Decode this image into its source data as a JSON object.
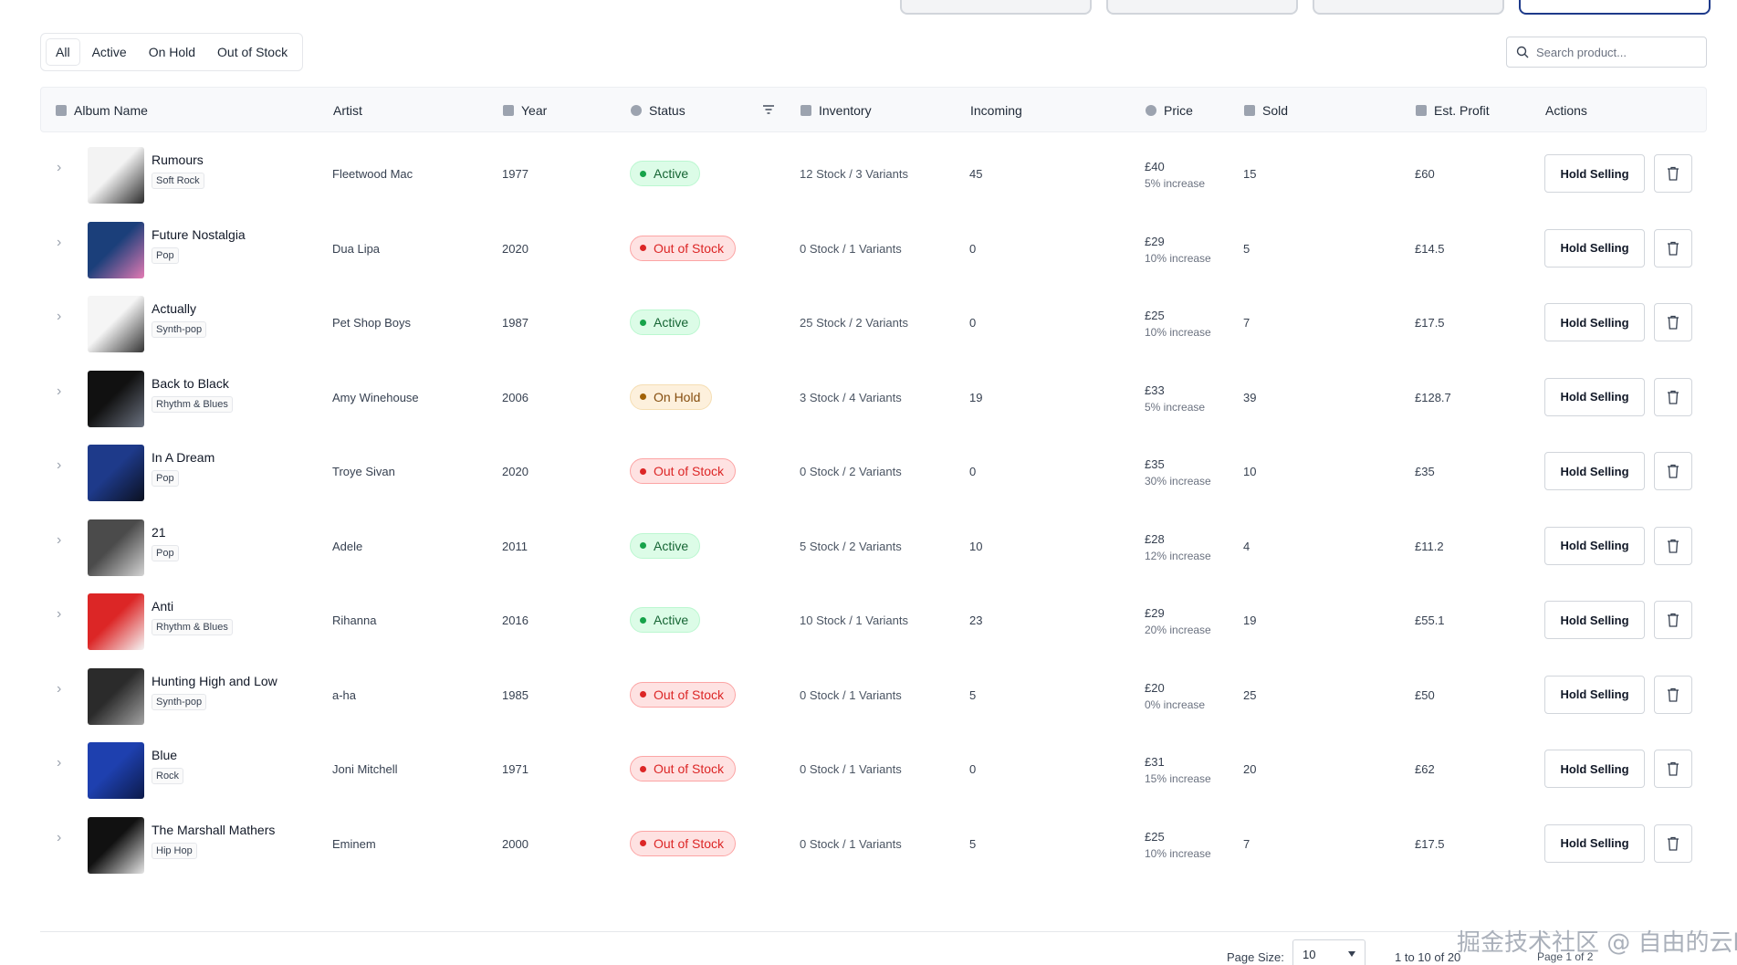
{
  "filters": {
    "tabs": [
      "All",
      "Active",
      "On Hold",
      "Out of Stock"
    ]
  },
  "search": {
    "placeholder": "Search product..."
  },
  "columns": {
    "album": "Album Name",
    "artist": "Artist",
    "year": "Year",
    "status": "Status",
    "inventory": "Inventory",
    "incoming": "Incoming",
    "price": "Price",
    "sold": "Sold",
    "profit": "Est. Profit",
    "actions": "Actions"
  },
  "rows": [
    {
      "title": "Rumours",
      "genre": "Soft Rock",
      "artist": "Fleetwood Mac",
      "year": "1977",
      "status": "Active",
      "status_kind": "active",
      "inventory": "12 Stock / 3 Variants",
      "incoming": "45",
      "price": "£40",
      "increase": "5% increase",
      "sold": "15",
      "profit": "£60",
      "cover": [
        "#f3f3f3",
        "#2b2b2b"
      ]
    },
    {
      "title": "Future Nostalgia",
      "genre": "Pop",
      "artist": "Dua Lipa",
      "year": "2020",
      "status": "Out of Stock",
      "status_kind": "oos",
      "inventory": "0 Stock / 1 Variants",
      "incoming": "0",
      "price": "£29",
      "increase": "10% increase",
      "sold": "5",
      "profit": "£14.5",
      "cover": [
        "#1b3f7a",
        "#e37ab3"
      ]
    },
    {
      "title": "Actually",
      "genre": "Synth-pop",
      "artist": "Pet Shop Boys",
      "year": "1987",
      "status": "Active",
      "status_kind": "active",
      "inventory": "25 Stock / 2 Variants",
      "incoming": "0",
      "price": "£25",
      "increase": "10% increase",
      "sold": "7",
      "profit": "£17.5",
      "cover": [
        "#f5f5f5",
        "#333333"
      ]
    },
    {
      "title": "Back to Black",
      "genre": "Rhythm & Blues",
      "artist": "Amy Winehouse",
      "year": "2006",
      "status": "On Hold",
      "status_kind": "hold",
      "inventory": "3 Stock / 4 Variants",
      "incoming": "19",
      "price": "£33",
      "increase": "5% increase",
      "sold": "39",
      "profit": "£128.7",
      "cover": [
        "#111111",
        "#6b7280"
      ]
    },
    {
      "title": "In A Dream",
      "genre": "Pop",
      "artist": "Troye Sivan",
      "year": "2020",
      "status": "Out of Stock",
      "status_kind": "oos",
      "inventory": "0 Stock / 2 Variants",
      "incoming": "0",
      "price": "£35",
      "increase": "30% increase",
      "sold": "10",
      "profit": "£35",
      "cover": [
        "#1e3a8a",
        "#0b1020"
      ]
    },
    {
      "title": "21",
      "genre": "Pop",
      "artist": "Adele",
      "year": "2011",
      "status": "Active",
      "status_kind": "active",
      "inventory": "5 Stock / 2 Variants",
      "incoming": "10",
      "price": "£28",
      "increase": "12% increase",
      "sold": "4",
      "profit": "£11.2",
      "cover": [
        "#4b4b4b",
        "#d4d4d4"
      ]
    },
    {
      "title": "Anti",
      "genre": "Rhythm & Blues",
      "artist": "Rihanna",
      "year": "2016",
      "status": "Active",
      "status_kind": "active",
      "inventory": "10 Stock / 1 Variants",
      "incoming": "23",
      "price": "£29",
      "increase": "20% increase",
      "sold": "19",
      "profit": "£55.1",
      "cover": [
        "#dc2626",
        "#f5f5f5"
      ]
    },
    {
      "title": "Hunting High and Low",
      "genre": "Synth-pop",
      "artist": "a-ha",
      "year": "1985",
      "status": "Out of Stock",
      "status_kind": "oos",
      "inventory": "0 Stock / 1 Variants",
      "incoming": "5",
      "price": "£20",
      "increase": "0% increase",
      "sold": "25",
      "profit": "£50",
      "cover": [
        "#2b2b2b",
        "#a3a3a3"
      ]
    },
    {
      "title": "Blue",
      "genre": "Rock",
      "artist": "Joni Mitchell",
      "year": "1971",
      "status": "Out of Stock",
      "status_kind": "oos",
      "inventory": "0 Stock / 1 Variants",
      "incoming": "0",
      "price": "£31",
      "increase": "15% increase",
      "sold": "20",
      "profit": "£62",
      "cover": [
        "#1e40af",
        "#0c1a4a"
      ]
    },
    {
      "title": "The Marshall Mathers",
      "genre": "Hip Hop",
      "artist": "Eminem",
      "year": "2000",
      "status": "Out of Stock",
      "status_kind": "oos",
      "inventory": "0 Stock / 1 Variants",
      "incoming": "5",
      "price": "£25",
      "increase": "10% increase",
      "sold": "7",
      "profit": "£17.5",
      "cover": [
        "#111111",
        "#e5e5e5"
      ]
    }
  ],
  "actions": {
    "hold_label": "Hold Selling"
  },
  "pagination": {
    "page_size_label": "Page Size:",
    "page_size": "10",
    "range": "1 to 10 of 20",
    "page": "Page 1 of 2"
  },
  "watermark": "掘金技术社区 @ 自由的云h"
}
